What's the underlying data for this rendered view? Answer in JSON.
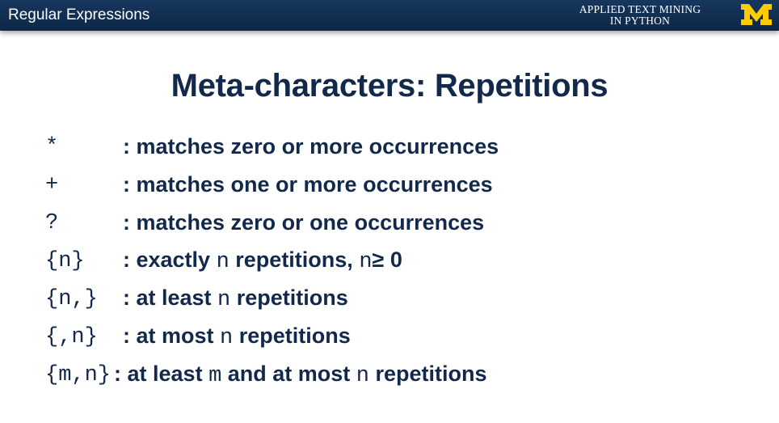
{
  "header": {
    "section_title": "Regular Expressions",
    "course_line1": "APPLIED TEXT MINING",
    "course_line2": "IN PYTHON",
    "logo_color": "#FFCB05",
    "background_color": "#13294b"
  },
  "slide": {
    "title": "Meta-characters: Repetitions",
    "rows": [
      {
        "symbol": "*",
        "text": ": matches zero or more occurrences"
      },
      {
        "symbol": "+",
        "text": ": matches one or more occurrences"
      },
      {
        "symbol": "?",
        "text": ": matches zero or one occurrences"
      },
      {
        "symbol": "{n}",
        "p1": ": exactly ",
        "v1": "n",
        "p2": " repetitions, ",
        "v2": "n",
        "p3": "≥ 0"
      },
      {
        "symbol": "{n,}",
        "p1": ": at least ",
        "v1": "n",
        "p2": " repetitions"
      },
      {
        "symbol": "{,n}",
        "p1": ": at most ",
        "v1": "n",
        "p2": " repetitions"
      },
      {
        "symbol": "{m,n}",
        "p1": " : at least ",
        "v1": "m",
        "p2": " and at most ",
        "v2": "n",
        "p3": " repetitions"
      }
    ]
  }
}
